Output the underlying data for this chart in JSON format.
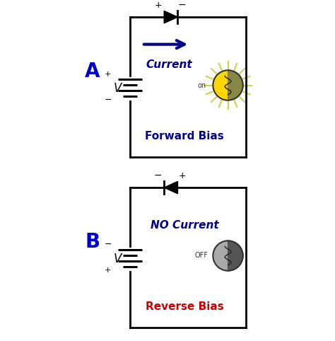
{
  "bg_color": "#ffffff",
  "circuit_line_color": "#000000",
  "label_color_AB": "#0000cc",
  "diode_color": "#000000",
  "arrow_color": "#00008B",
  "forward_text_color": "#00008B",
  "reverse_text_color": "#cc0000",
  "bulb_on_color": "#FFD700",
  "bulb_off_color": "#aaaaaa",
  "sun_ray_color": "#c8d44e",
  "battery_line_color": "#000000",
  "panel_A_label": "A",
  "panel_B_label": "B",
  "forward_bias_label": "Forward Bias",
  "reverse_bias_label": "Reverse Bias",
  "current_label": "Current",
  "no_current_label": "NO Current",
  "on_label": "on",
  "off_label": "OFF",
  "V_label": "V"
}
